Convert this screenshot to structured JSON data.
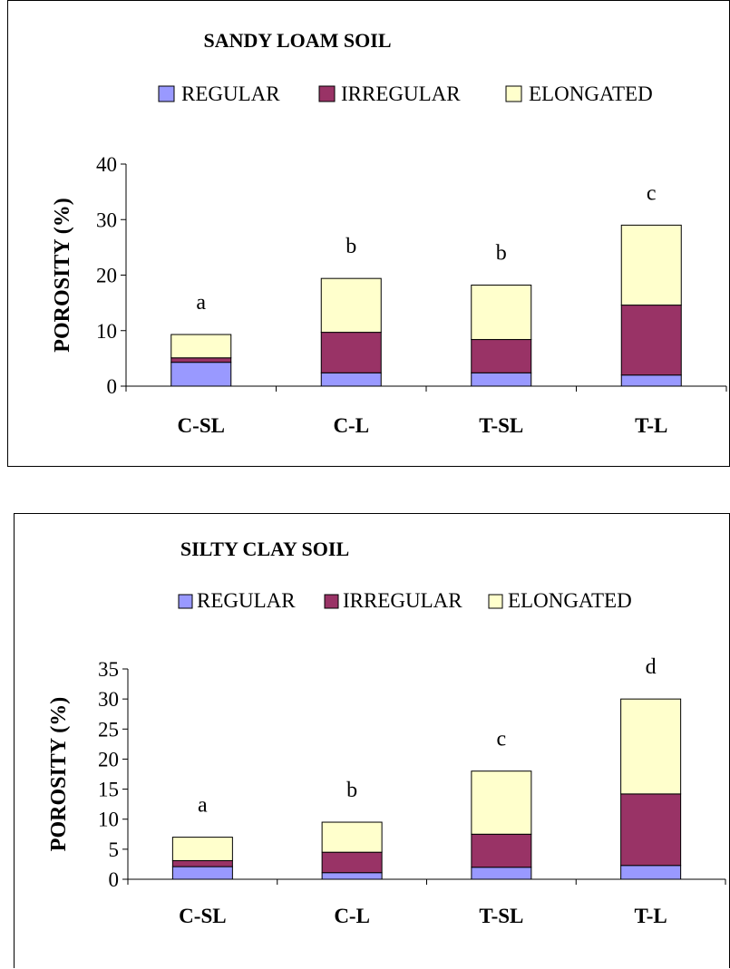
{
  "chart_data": [
    {
      "type": "bar",
      "stacked": true,
      "title": "SANDY LOAM SOIL",
      "xlabel": "",
      "ylabel": "POROSITY (%)",
      "categories": [
        "C-SL",
        "C-L",
        "T-SL",
        "T-L"
      ],
      "series": [
        {
          "name": "REGULAR",
          "color": "#9999ff",
          "values": [
            4.3,
            2.4,
            2.4,
            2.0
          ]
        },
        {
          "name": "IRREGULAR",
          "color": "#993366",
          "values": [
            0.8,
            7.3,
            6.0,
            12.6
          ]
        },
        {
          "name": "ELONGATED",
          "color": "#ffffcc",
          "values": [
            4.2,
            9.7,
            9.8,
            14.4
          ]
        }
      ],
      "bar_labels": [
        "a",
        "b",
        "b",
        "c"
      ],
      "ylim": [
        0,
        40
      ],
      "yticks": [
        0,
        10,
        20,
        30,
        40
      ],
      "legend_position": "top",
      "grid": false
    },
    {
      "type": "bar",
      "stacked": true,
      "title": "SILTY CLAY SOIL",
      "xlabel": "",
      "ylabel": "POROSITY (%)",
      "categories": [
        "C-SL",
        "C-L",
        "T-SL",
        "T-L"
      ],
      "series": [
        {
          "name": "REGULAR",
          "color": "#9999ff",
          "values": [
            2.1,
            1.1,
            2.0,
            2.3
          ]
        },
        {
          "name": "IRREGULAR",
          "color": "#993366",
          "values": [
            1.0,
            3.4,
            5.5,
            11.9
          ]
        },
        {
          "name": "ELONGATED",
          "color": "#ffffcc",
          "values": [
            3.9,
            5.0,
            10.5,
            15.8
          ]
        }
      ],
      "bar_labels": [
        "a",
        "b",
        "c",
        "d"
      ],
      "ylim": [
        0,
        35
      ],
      "yticks": [
        0,
        5,
        10,
        15,
        20,
        25,
        30,
        35
      ],
      "legend_position": "top",
      "grid": false
    }
  ]
}
